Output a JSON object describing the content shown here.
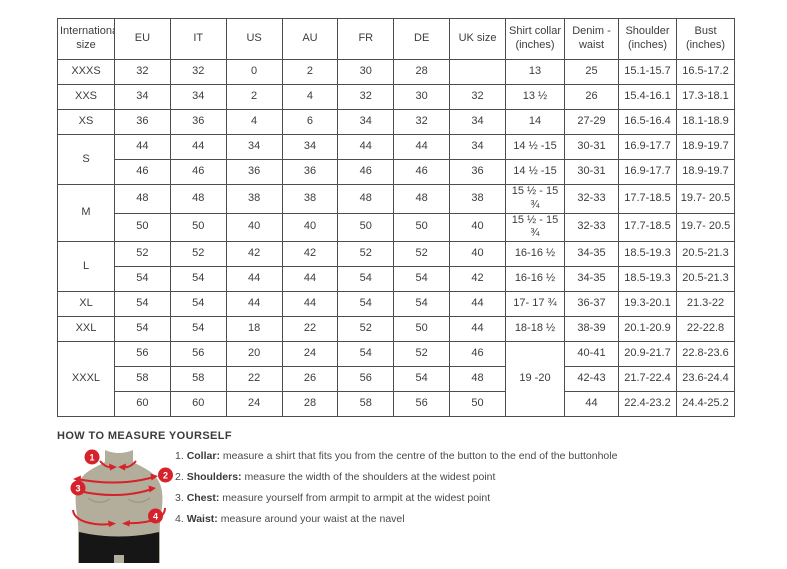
{
  "colors": {
    "accent_red": "#d6222b",
    "torso_tan": "#b3ae9b",
    "shorts_black": "#161616",
    "border": "#4e4e4e",
    "text": "#3d3d3d"
  },
  "table": {
    "headers": [
      "International size",
      "EU",
      "IT",
      "US",
      "AU",
      "FR",
      "DE",
      "UK size",
      "Shirt collar (inches)",
      "Denim - waist",
      "Shoulder (inches)",
      "Bust (inches)"
    ],
    "groups": [
      {
        "label": "XXXS",
        "rows": [
          [
            "32",
            "32",
            "0",
            "2",
            "30",
            "28",
            "",
            "13",
            "25",
            "15.1-15.7",
            "16.5-17.2"
          ]
        ]
      },
      {
        "label": "XXS",
        "rows": [
          [
            "34",
            "34",
            "2",
            "4",
            "32",
            "30",
            "32",
            "13 ½",
            "26",
            "15.4-16.1",
            "17.3-18.1"
          ]
        ]
      },
      {
        "label": "XS",
        "rows": [
          [
            "36",
            "36",
            "4",
            "6",
            "34",
            "32",
            "34",
            "14",
            "27-29",
            "16.5-16.4",
            "18.1-18.9"
          ]
        ]
      },
      {
        "label": "S",
        "rows": [
          [
            "44",
            "44",
            "34",
            "34",
            "44",
            "44",
            "34",
            "14 ½ -15",
            "30-31",
            "16.9-17.7",
            "18.9-19.7"
          ],
          [
            "46",
            "46",
            "36",
            "36",
            "46",
            "46",
            "36",
            "14 ½ -15",
            "30-31",
            "16.9-17.7",
            "18.9-19.7"
          ]
        ]
      },
      {
        "label": "M",
        "rows": [
          [
            "48",
            "48",
            "38",
            "38",
            "48",
            "48",
            "38",
            "15 ½ - 15 ¾",
            "32-33",
            "17.7-18.5",
            "19.7- 20.5"
          ],
          [
            "50",
            "50",
            "40",
            "40",
            "50",
            "50",
            "40",
            "15 ½ - 15 ¾",
            "32-33",
            "17.7-18.5",
            "19.7- 20.5"
          ]
        ]
      },
      {
        "label": "L",
        "rows": [
          [
            "52",
            "52",
            "42",
            "42",
            "52",
            "52",
            "40",
            "16-16 ½",
            "34-35",
            "18.5-19.3",
            "20.5-21.3"
          ],
          [
            "54",
            "54",
            "44",
            "44",
            "54",
            "54",
            "42",
            "16-16 ½",
            "34-35",
            "18.5-19.3",
            "20.5-21.3"
          ]
        ]
      },
      {
        "label": "XL",
        "rows": [
          [
            "54",
            "54",
            "44",
            "44",
            "54",
            "54",
            "44",
            "17- 17 ¾",
            "36-37",
            "19.3-20.1",
            "21.3-22"
          ]
        ]
      },
      {
        "label": "XXL",
        "rows": [
          [
            "54",
            "54",
            "18",
            "22",
            "52",
            "50",
            "44",
            "18-18 ½",
            "38-39",
            "20.1-20.9",
            "22-22.8"
          ]
        ]
      },
      {
        "label": "XXXL",
        "merged_collar": "19 -20",
        "rows": [
          [
            "56",
            "56",
            "20",
            "24",
            "54",
            "52",
            "46",
            null,
            "40-41",
            "20.9-21.7",
            "22.8-23.6"
          ],
          [
            "58",
            "58",
            "22",
            "26",
            "56",
            "54",
            "48",
            null,
            "42-43",
            "21.7-22.4",
            "23.6-24.4"
          ],
          [
            "60",
            "60",
            "24",
            "28",
            "58",
            "56",
            "50",
            null,
            "44",
            "22.4-23.2",
            "24.4-25.2"
          ]
        ]
      }
    ]
  },
  "measure": {
    "title": "HOW TO MEASURE YOURSELF",
    "steps": [
      {
        "num": "1",
        "label": "Collar",
        "text": "measure a shirt that fits you from the centre of the button to the end of the buttonhole"
      },
      {
        "num": "2",
        "label": "Shoulders",
        "text": "measure the width of the shoulders at the widest point"
      },
      {
        "num": "3",
        "label": "Chest",
        "text": "measure yourself from armpit to armpit at the widest point"
      },
      {
        "num": "4",
        "label": "Waist",
        "text": "measure around your waist at the navel"
      }
    ]
  },
  "figure": {
    "marker_labels": [
      "1",
      "2",
      "3",
      "4"
    ]
  }
}
